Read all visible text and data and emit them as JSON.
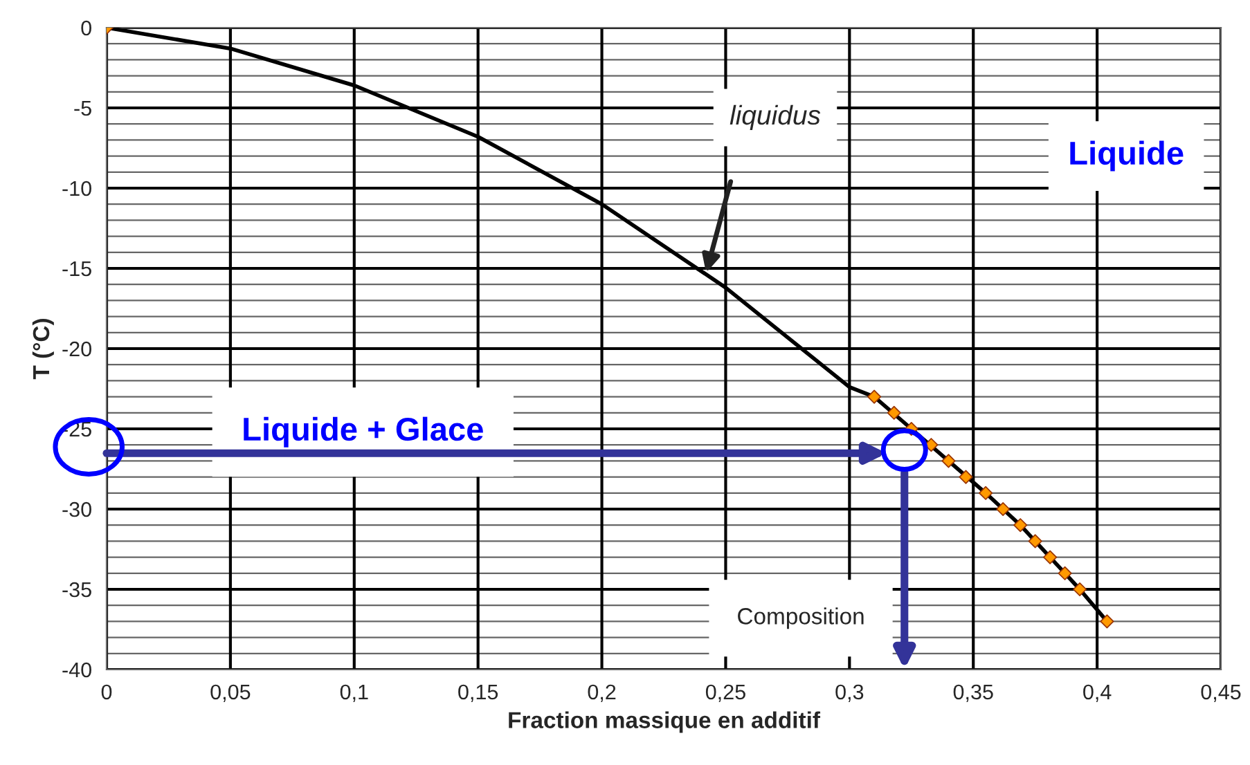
{
  "chart_data": {
    "type": "line",
    "xlabel": "Fraction massique en additif",
    "ylabel": "T (°C)",
    "xlim": [
      0,
      0.45
    ],
    "ylim": [
      -40,
      0
    ],
    "xticks": [
      {
        "value": 0,
        "label": "0"
      },
      {
        "value": 0.05,
        "label": "0,05"
      },
      {
        "value": 0.1,
        "label": "0,1"
      },
      {
        "value": 0.15,
        "label": "0,15"
      },
      {
        "value": 0.2,
        "label": "0,2"
      },
      {
        "value": 0.25,
        "label": "0,25"
      },
      {
        "value": 0.3,
        "label": "0,3"
      },
      {
        "value": 0.35,
        "label": "0,35"
      },
      {
        "value": 0.4,
        "label": "0,4"
      },
      {
        "value": 0.45,
        "label": "0,45"
      }
    ],
    "yticks": [
      0,
      -5,
      -10,
      -15,
      -20,
      -25,
      -30,
      -35,
      -40
    ],
    "grid": true,
    "legend": false,
    "series": [
      {
        "color": "#000000",
        "marker": "none",
        "line_style": "solid",
        "x": [
          0,
          0.05,
          0.1,
          0.15,
          0.2,
          0.25,
          0.3,
          0.31,
          0.325,
          0.34,
          0.355,
          0.369,
          0.381,
          0.393,
          0.404
        ],
        "values": [
          0,
          -1.3,
          -3.6,
          -6.8,
          -11,
          -16.2,
          -22.4,
          -23,
          -25,
          -27,
          -29,
          -31,
          -33,
          -35,
          -37
        ]
      },
      {
        "type": "scatter",
        "color": "#ff9900",
        "marker": "diamond",
        "x": [
          0,
          0.31,
          0.318,
          0.325,
          0.333,
          0.34,
          0.347,
          0.355,
          0.362,
          0.369,
          0.375,
          0.381,
          0.387,
          0.393,
          0.404
        ],
        "values": [
          0,
          -23,
          -24,
          -25,
          -26,
          -27,
          -28,
          -29,
          -30,
          -31,
          -32,
          -33,
          -34,
          -35,
          -37
        ]
      }
    ],
    "annotations": [
      "liquidus",
      "Liquide",
      "Liquide + Glace",
      "Composition"
    ]
  }
}
